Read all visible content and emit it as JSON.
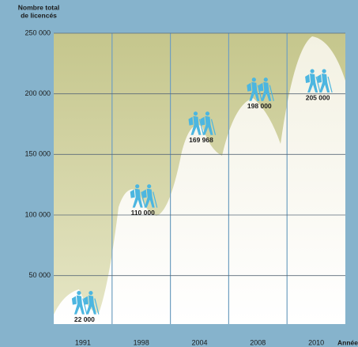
{
  "chart_data": {
    "type": "hikers",
    "y_axis_label": [
      "Nombre total",
      "de licencés"
    ],
    "x_axis_label": "Années",
    "categories": [
      "1991",
      "1998",
      "2004",
      "2008",
      "2010"
    ],
    "values": [
      22000,
      110000,
      169968,
      198000,
      205000
    ],
    "value_labels": [
      "22 000",
      "110 000",
      "169 968",
      "198 000",
      "205 000"
    ],
    "color": "#4cb6e0",
    "ylim": [
      10000,
      250000
    ],
    "yticks": [
      {
        "value": 50000,
        "label": "50 000"
      },
      {
        "value": 100000,
        "label": "100 000"
      },
      {
        "value": 150000,
        "label": "150 000"
      },
      {
        "value": 200000,
        "label": "200 000"
      },
      {
        "value": 250000,
        "label": "250 000"
      }
    ],
    "grid": true
  }
}
